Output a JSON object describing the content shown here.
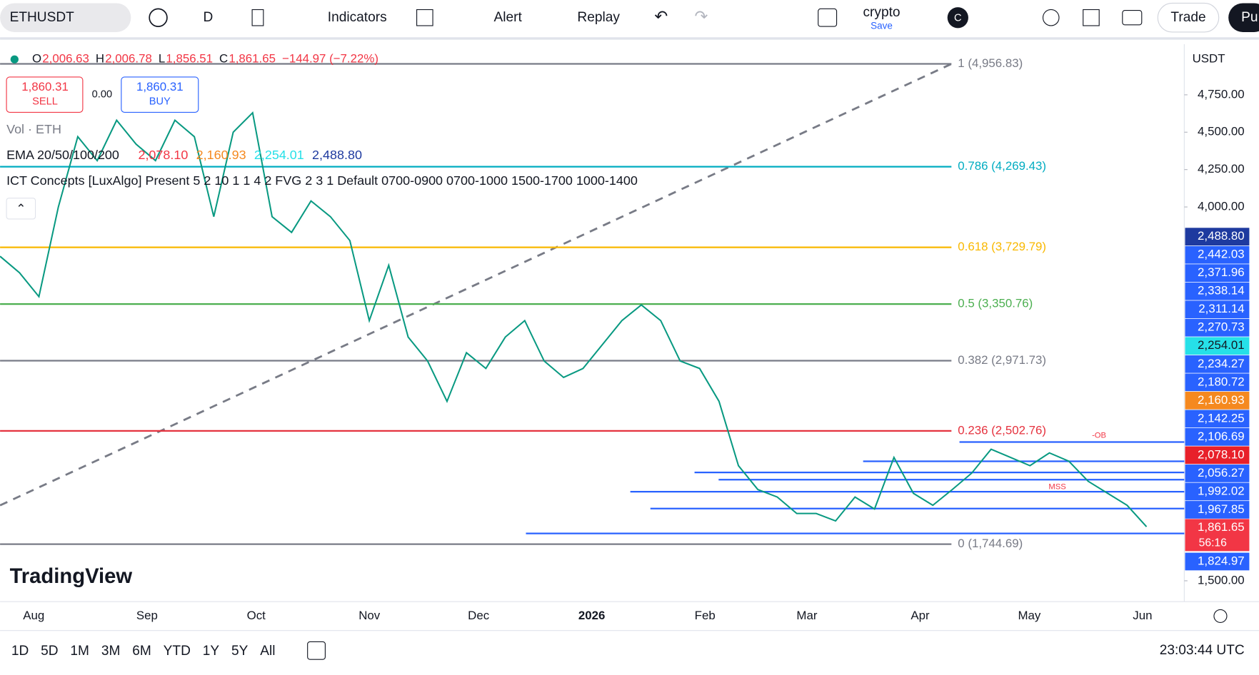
{
  "toolbar": {
    "symbol": "ETHUSDT",
    "interval": "D",
    "indicators": "Indicators",
    "alert": "Alert",
    "replay": "Replay",
    "layout_name": "crypto",
    "save": "Save",
    "avatar": "C",
    "trade": "Trade",
    "publish": "Pu"
  },
  "legend": {
    "ohlc": [
      {
        "key": "O",
        "value": "2,006.63"
      },
      {
        "key": "H",
        "value": "2,006.78"
      },
      {
        "key": "L",
        "value": "1,856.51"
      },
      {
        "key": "C",
        "value": "1,861.65"
      }
    ],
    "change": "−144.97 (−7.22%)",
    "sell_price": "1,860.31",
    "sell": "SELL",
    "spread": "0.00",
    "buy_price": "1,860.31",
    "buy": "BUY",
    "volume": "Vol · ETH",
    "ema_name": "EMA 20/50/100/200",
    "ema_values": [
      "2,078.10",
      "2,160.93",
      "2,254.01",
      "2,488.80"
    ],
    "indicator": "ICT Concepts [LuxAlgo] Present 5 2 10 1 1 4 2 FVG 2 3 1 Default 0700-0900 0700-1000 1500-1700 1000-1400"
  },
  "chart": {
    "currency": "USDT",
    "price_ticks": [
      {
        "value": 4750,
        "label": "4,750.00"
      },
      {
        "value": 4500,
        "label": "4,500.00"
      },
      {
        "value": 4250,
        "label": "4,250.00"
      },
      {
        "value": 4000,
        "label": "4,000.00"
      },
      {
        "value": 1500,
        "label": "1,500.00"
      }
    ],
    "price_tags": [
      {
        "value": 2488.8,
        "label": "2,488.80",
        "color": "#1e3a9f"
      },
      {
        "value": 2442.03,
        "label": "2,442.03",
        "color": "#2962ff"
      },
      {
        "value": 2371.96,
        "label": "2,371.96",
        "color": "#2962ff"
      },
      {
        "value": 2338.14,
        "label": "2,338.14",
        "color": "#2962ff"
      },
      {
        "value": 2311.14,
        "label": "2,311.14",
        "color": "#2962ff"
      },
      {
        "value": 2270.73,
        "label": "2,270.73",
        "color": "#2962ff"
      },
      {
        "value": 2254.01,
        "label": "2,254.01",
        "color": "#26e0e8"
      },
      {
        "value": 2234.27,
        "label": "2,234.27",
        "color": "#2962ff"
      },
      {
        "value": 2180.72,
        "label": "2,180.72",
        "color": "#2962ff"
      },
      {
        "value": 2160.93,
        "label": "2,160.93",
        "color": "#f5891f"
      },
      {
        "value": 2142.25,
        "label": "2,142.25",
        "color": "#2962ff"
      },
      {
        "value": 2106.69,
        "label": "2,106.69",
        "color": "#2962ff"
      },
      {
        "value": 2078.1,
        "label": "2,078.10",
        "color": "#e8202a"
      },
      {
        "value": 2056.27,
        "label": "2,056.27",
        "color": "#2962ff"
      },
      {
        "value": 1992.02,
        "label": "1,992.02",
        "color": "#2962ff"
      },
      {
        "value": 1967.85,
        "label": "1,967.85",
        "color": "#2962ff"
      },
      {
        "value": 1861.65,
        "label": "1,861.65",
        "color": "#f23645",
        "countdown": "56:16"
      },
      {
        "value": 1824.97,
        "label": "1,824.97",
        "color": "#2962ff"
      }
    ],
    "fib_levels": [
      {
        "label": "1 (4,956.83)",
        "value": 4956.83,
        "color": "#787b86"
      },
      {
        "label": "0.786 (4,269.43)",
        "value": 4269.43,
        "color": "#00acc1"
      },
      {
        "label": "0.618 (3,729.79)",
        "value": 3729.79,
        "color": "#f9b800"
      },
      {
        "label": "0.5 (3,350.76)",
        "value": 3350.76,
        "color": "#4caf50"
      },
      {
        "label": "0.382 (2,971.73)",
        "value": 2971.73,
        "color": "#787b86"
      },
      {
        "label": "0.236 (2,502.76)",
        "value": 2502.76,
        "color": "#e5323e"
      },
      {
        "label": "0 (1,744.69)",
        "value": 1744.69,
        "color": "#787b86"
      }
    ],
    "annotations": [
      "-OB",
      "MSS"
    ],
    "price_line": [
      3670,
      3560,
      3400,
      4000,
      4470,
      4310,
      4580,
      4420,
      4310,
      4580,
      4470,
      3935,
      4500,
      4630,
      3935,
      3830,
      4040,
      3935,
      3775,
      3240,
      3610,
      3130,
      2970,
      2700,
      3025,
      2920,
      3130,
      3240,
      2970,
      2860,
      2920,
      3080,
      3240,
      3345,
      3240,
      2970,
      2920,
      2700,
      2270,
      2110,
      2060,
      1950,
      1950,
      1900,
      2060,
      1980,
      2325,
      2085,
      2005,
      2110,
      2220,
      2380,
      2325,
      2270,
      2355,
      2300,
      2165,
      2085,
      2005,
      1861.65
    ],
    "time_labels": [
      "Aug",
      "Sep",
      "Oct",
      "Nov",
      "Dec",
      "2026",
      "Feb",
      "Mar",
      "Apr",
      "May",
      "Jun"
    ]
  },
  "logo": "TradingView",
  "bottom_bar": {
    "ranges": [
      "1D",
      "5D",
      "1M",
      "3M",
      "6M",
      "YTD",
      "1Y",
      "5Y",
      "All"
    ],
    "clock": "23:03:44 UTC"
  }
}
